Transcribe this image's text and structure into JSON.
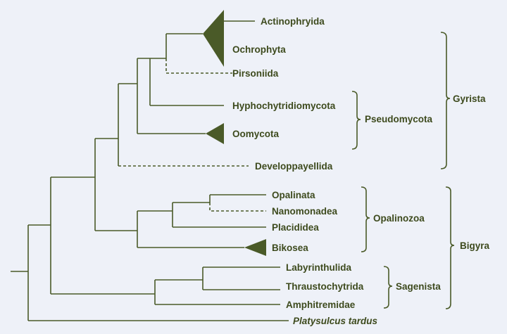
{
  "taxa": {
    "actinophryida": "Actinophryida",
    "ochrophyta": "Ochrophyta",
    "pirsoniida": "Pirsoniida",
    "hyphochytridiomycota": "Hyphochytridiomycota",
    "oomycota": "Oomycota",
    "developpayellida": "Developpayellida",
    "opalinata": "Opalinata",
    "nanomonadea": "Nanomonadea",
    "placididea": "Placididea",
    "bikosea": "Bikosea",
    "labyrinthulida": "Labyrinthulida",
    "thraustochytrida": "Thraustochytrida",
    "amphitremidae": "Amphitremidae",
    "platysulcus": "Platysulcus tardus"
  },
  "groups": {
    "pseudomycota": "Pseudomycota",
    "gyrista": "Gyrista",
    "opalinozoa": "Opalinozoa",
    "bigyra": "Bigyra",
    "sagenista": "Sagenista"
  },
  "colors": {
    "background": "#eef1f8",
    "branch": "#4a5a28",
    "label": "#3d4a1d"
  }
}
